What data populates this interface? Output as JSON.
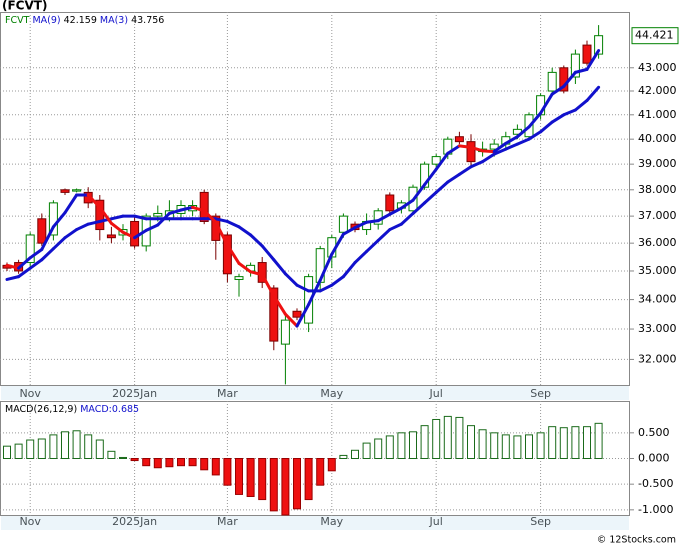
{
  "chart_data": [
    {
      "type": "candlestick",
      "title": "(FCVT)",
      "categories": [
        null,
        null,
        "Nov",
        null,
        null,
        null,
        null,
        null,
        null,
        null,
        null,
        "2025Jan",
        null,
        null,
        null,
        null,
        null,
        null,
        null,
        "Mar",
        null,
        null,
        null,
        null,
        null,
        null,
        null,
        null,
        "May",
        null,
        null,
        null,
        null,
        null,
        null,
        null,
        null,
        "Jul",
        null,
        null,
        null,
        null,
        null,
        null,
        null,
        null,
        "Sep",
        null,
        null,
        null,
        null,
        null
      ],
      "log_y": true,
      "grid": true,
      "ylim": [
        31.15,
        45.5
      ],
      "yticks": [
        {
          "value": 32,
          "label": "32.000"
        },
        {
          "value": 33,
          "label": "33.000"
        },
        {
          "value": 34,
          "label": "34.000"
        },
        {
          "value": 35,
          "label": "35.000"
        },
        {
          "value": 36,
          "label": "36.000"
        },
        {
          "value": 37,
          "label": "37.000"
        },
        {
          "value": 38,
          "label": "38.000"
        },
        {
          "value": 39,
          "label": "39.000"
        },
        {
          "value": 40,
          "label": "40.000"
        },
        {
          "value": 41,
          "label": "41.000"
        },
        {
          "value": 42,
          "label": "42.000"
        },
        {
          "value": 43,
          "label": "43.000"
        }
      ],
      "series": [
        {
          "name": "FCVT",
          "color": "#008000",
          "up_color": "#ffffff",
          "down_color": "#ee1111",
          "open": [
            35.2,
            35.3,
            35.3,
            36.9,
            36.3,
            38.0,
            37.95,
            37.9,
            37.6,
            36.3,
            36.3,
            36.8,
            35.9,
            37.0,
            36.9,
            37.1,
            37.2,
            37.9,
            37.0,
            36.3,
            34.7,
            35.0,
            35.3,
            34.4,
            32.5,
            33.6,
            33.2,
            34.6,
            35.5,
            36.4,
            36.7,
            36.5,
            36.7,
            37.8,
            37.3,
            37.2,
            38.1,
            39.0,
            39.4,
            40.1,
            39.9,
            39.5,
            39.6,
            39.8,
            40.2,
            40.1,
            41.0,
            42.0,
            43.0,
            42.6,
            44.0,
            43.6
          ],
          "high": [
            35.3,
            35.4,
            36.4,
            37.1,
            37.6,
            38.05,
            38.05,
            38.1,
            37.8,
            36.6,
            36.7,
            37.0,
            37.1,
            37.4,
            37.6,
            37.6,
            37.6,
            38.0,
            37.1,
            36.4,
            34.9,
            35.3,
            35.5,
            34.5,
            33.5,
            33.7,
            34.9,
            35.9,
            36.3,
            37.1,
            36.8,
            37.1,
            37.3,
            37.9,
            37.6,
            38.2,
            39.1,
            39.4,
            40.1,
            40.3,
            40.2,
            39.9,
            40.0,
            40.3,
            40.6,
            41.1,
            41.9,
            43.0,
            43.1,
            43.8,
            44.2,
            44.9
          ],
          "low": [
            35.0,
            34.9,
            35.1,
            35.9,
            36.1,
            37.8,
            37.9,
            37.3,
            36.1,
            36.0,
            36.1,
            35.8,
            35.7,
            36.8,
            36.8,
            36.9,
            37.0,
            36.7,
            35.4,
            34.6,
            34.1,
            34.8,
            34.4,
            32.3,
            31.2,
            33.3,
            32.9,
            34.3,
            35.1,
            36.2,
            36.4,
            36.3,
            36.5,
            37.1,
            37.1,
            37.1,
            38.0,
            38.8,
            39.2,
            39.8,
            38.9,
            39.3,
            39.3,
            39.6,
            40.0,
            40.0,
            40.8,
            41.8,
            41.9,
            42.3,
            43.1,
            43.4
          ],
          "close": [
            35.1,
            35.0,
            36.3,
            36.0,
            37.5,
            37.9,
            38.0,
            37.5,
            36.5,
            36.2,
            36.5,
            35.9,
            37.0,
            37.1,
            37.2,
            37.4,
            37.4,
            36.8,
            36.1,
            34.9,
            34.8,
            35.2,
            34.6,
            32.6,
            33.3,
            33.4,
            34.8,
            35.8,
            36.2,
            37.0,
            36.5,
            36.8,
            37.2,
            37.2,
            37.5,
            38.1,
            39.0,
            39.3,
            40.0,
            39.9,
            39.1,
            39.6,
            39.8,
            40.1,
            40.4,
            41.0,
            41.8,
            42.8,
            42.0,
            43.6,
            43.2,
            44.421
          ]
        },
        {
          "name": "MA(9)",
          "color": "#1111cc",
          "values": [
            34.7,
            34.8,
            35.1,
            35.4,
            35.8,
            36.2,
            36.5,
            36.7,
            36.8,
            36.9,
            37.0,
            37.0,
            36.9,
            36.9,
            36.9,
            36.9,
            36.9,
            36.9,
            36.9,
            36.8,
            36.6,
            36.3,
            35.9,
            35.4,
            34.9,
            34.5,
            34.3,
            34.3,
            34.5,
            34.8,
            35.3,
            35.7,
            36.1,
            36.5,
            36.7,
            37.1,
            37.5,
            37.9,
            38.3,
            38.6,
            38.9,
            39.1,
            39.4,
            39.6,
            39.8,
            40.0,
            40.3,
            40.7,
            41.0,
            41.2,
            41.6,
            42.159
          ]
        },
        {
          "name": "MA(3)",
          "color": "#1111cc",
          "down_color": "#ee1111",
          "values": [
            35.2,
            35.1,
            35.47,
            35.77,
            36.6,
            37.13,
            37.8,
            37.8,
            37.33,
            36.73,
            36.4,
            36.2,
            36.47,
            36.67,
            37.1,
            37.23,
            37.33,
            37.2,
            36.77,
            35.93,
            35.27,
            34.97,
            34.87,
            34.13,
            33.5,
            33.1,
            33.83,
            34.67,
            35.6,
            36.33,
            36.57,
            36.77,
            36.83,
            37.07,
            37.3,
            37.6,
            38.2,
            38.8,
            39.43,
            39.73,
            39.67,
            39.53,
            39.5,
            39.83,
            40.1,
            40.5,
            41.07,
            41.87,
            42.2,
            42.8,
            42.93,
            43.756
          ]
        }
      ]
    },
    {
      "type": "bar",
      "title": "MACD(26,12,9)",
      "categories": [
        null,
        null,
        "Nov",
        null,
        null,
        null,
        null,
        null,
        null,
        null,
        null,
        "2025Jan",
        null,
        null,
        null,
        null,
        null,
        null,
        null,
        "Mar",
        null,
        null,
        null,
        null,
        null,
        null,
        null,
        null,
        "May",
        null,
        null,
        null,
        null,
        null,
        null,
        null,
        null,
        "Jul",
        null,
        null,
        null,
        null,
        null,
        null,
        null,
        null,
        "Sep",
        null,
        null,
        null,
        null,
        null
      ],
      "grid": true,
      "ylim": [
        -1.12,
        1.12
      ],
      "yticks": [
        {
          "value": 0.5,
          "label": "0.500"
        },
        {
          "value": 0,
          "label": "0.000"
        },
        {
          "value": -0.5,
          "label": "-0.500"
        },
        {
          "value": -1,
          "label": "-1.000"
        }
      ],
      "series": [
        {
          "name": "MACD:",
          "color": "#1111cc",
          "up_color": "#1a6a1a",
          "down_color": "#ee1111",
          "values": [
            0.24,
            0.28,
            0.36,
            0.38,
            0.46,
            0.52,
            0.54,
            0.46,
            0.36,
            0.14,
            0.02,
            -0.04,
            -0.14,
            -0.18,
            -0.16,
            -0.14,
            -0.14,
            -0.22,
            -0.32,
            -0.52,
            -0.7,
            -0.74,
            -0.8,
            -1.02,
            -1.1,
            -0.98,
            -0.8,
            -0.52,
            -0.24,
            0.06,
            0.16,
            0.3,
            0.38,
            0.44,
            0.5,
            0.52,
            0.64,
            0.76,
            0.82,
            0.8,
            0.64,
            0.56,
            0.5,
            0.46,
            0.44,
            0.46,
            0.5,
            0.62,
            0.6,
            0.62,
            0.62,
            0.685
          ]
        }
      ]
    }
  ],
  "watermark": "© 12Stocks.com"
}
